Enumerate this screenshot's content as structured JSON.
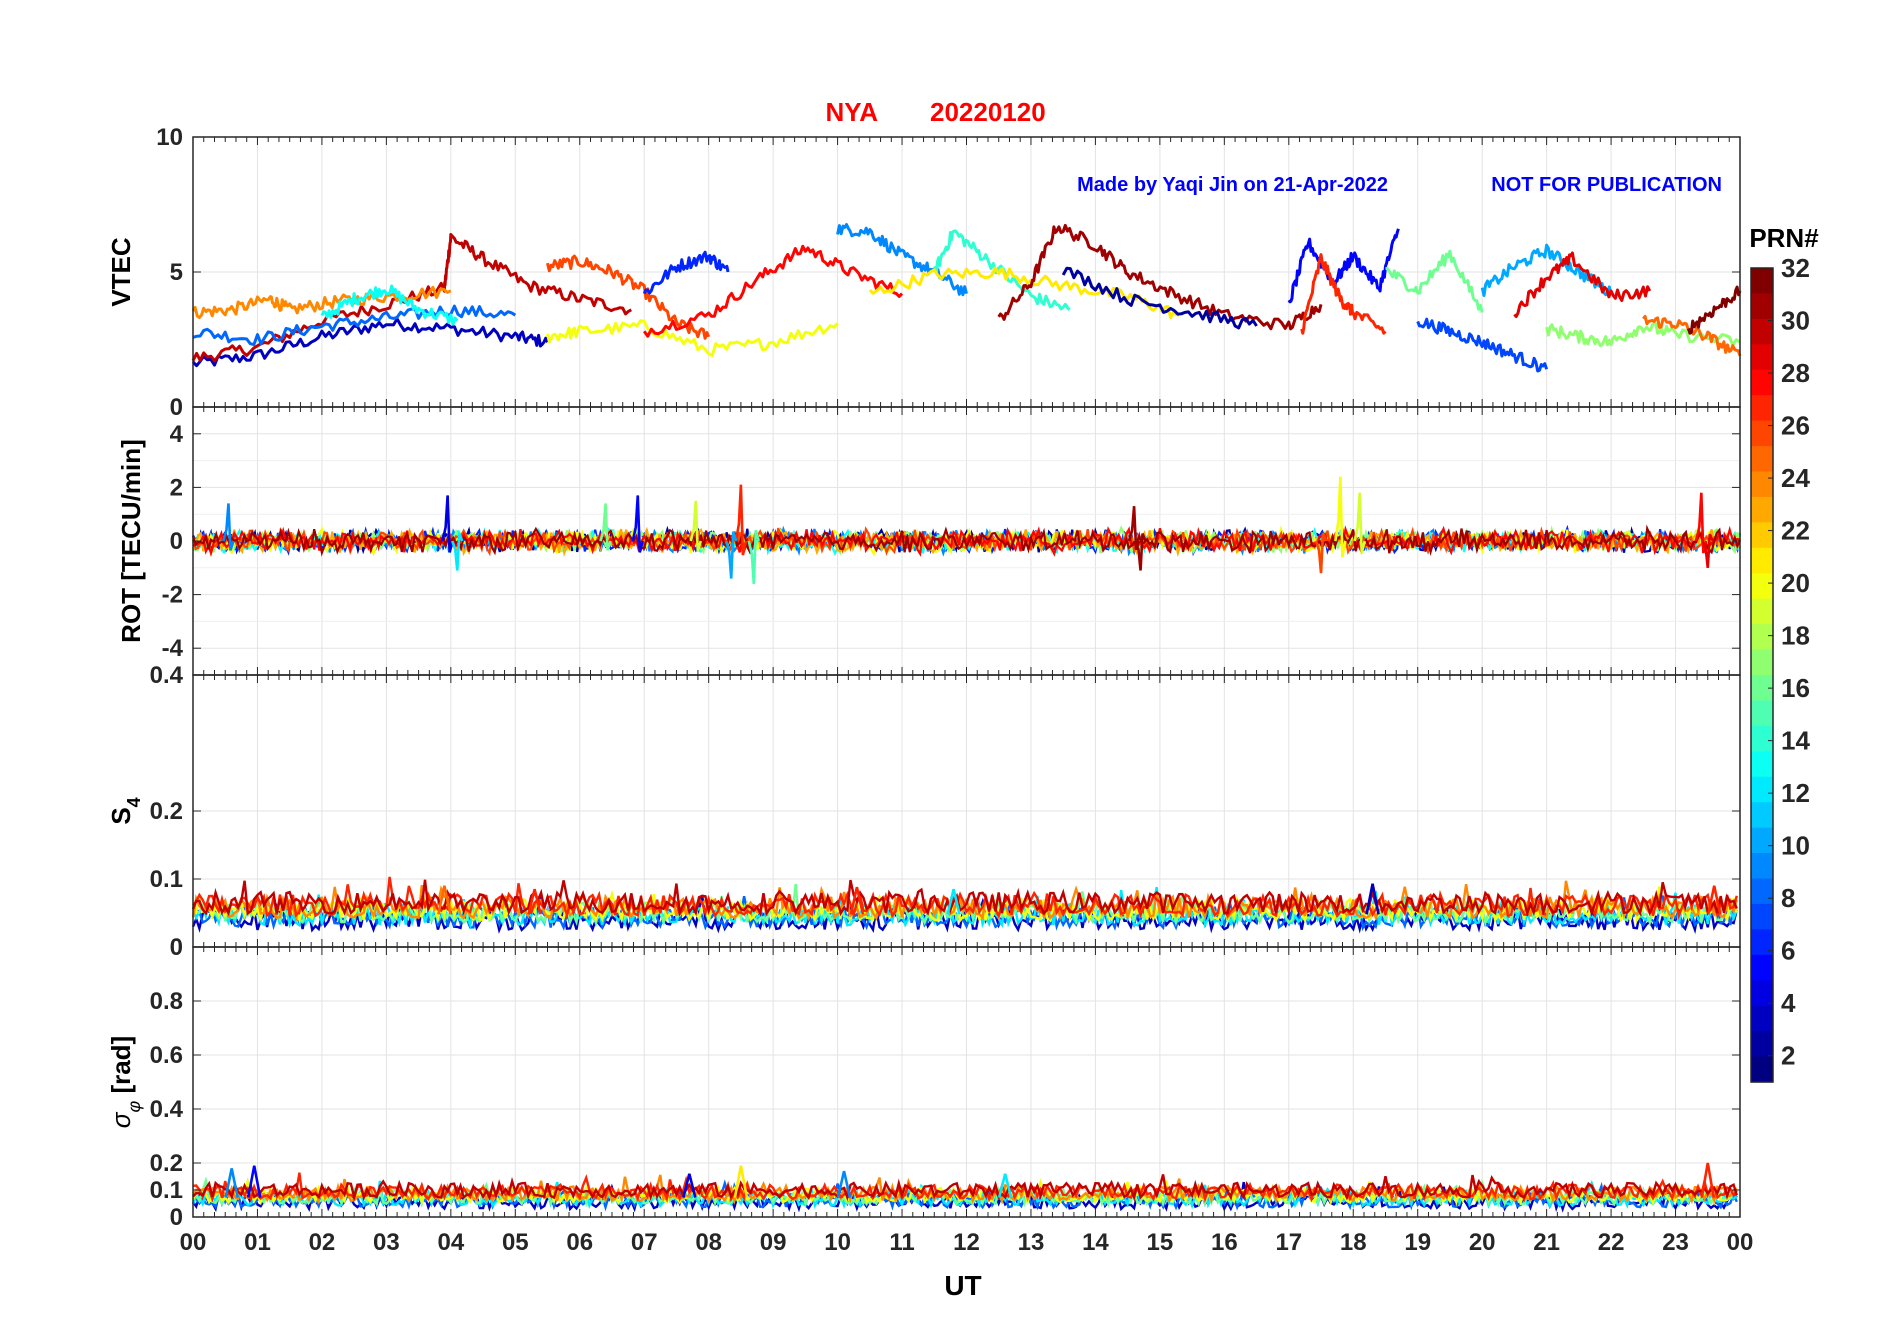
{
  "figure": {
    "title_station": "NYA",
    "title_date": "20220120",
    "credit": "Made by Yaqi Jin on 21-Apr-2022",
    "notice": "NOT FOR PUBLICATION",
    "title_color": "#ff0000",
    "credit_color": "#0000ff"
  },
  "chart_data": [
    {
      "type": "line",
      "panel": "vtec",
      "ylabel": "VTEC",
      "ylim": [
        0,
        10
      ],
      "yticks": [
        0,
        5,
        10
      ],
      "ytick_labels": [
        "0",
        "5",
        "10"
      ],
      "xlim_hours": [
        0,
        24
      ],
      "grid": true,
      "series": [
        {
          "prn": 3,
          "x": [
            0,
            1,
            2,
            3,
            4,
            5,
            5.5
          ],
          "y": [
            1.6,
            1.9,
            2.6,
            3.1,
            2.9,
            2.6,
            2.4
          ]
        },
        {
          "prn": 30,
          "x": [
            0,
            1,
            2,
            3,
            3.9,
            4,
            4.5,
            5.2,
            6,
            6.8
          ],
          "y": [
            1.8,
            2.2,
            3.2,
            3.8,
            4.4,
            6.3,
            5.5,
            4.5,
            4.0,
            3.6
          ]
        },
        {
          "prn": 24,
          "x": [
            0,
            0.6,
            1.2,
            1.5,
            2.2,
            3,
            4
          ],
          "y": [
            3.5,
            3.6,
            4.0,
            3.6,
            3.9,
            4.1,
            4.3
          ]
        },
        {
          "prn": 8,
          "x": [
            0,
            1,
            2,
            3,
            4,
            5
          ],
          "y": [
            2.8,
            2.5,
            3.0,
            3.3,
            3.6,
            3.4
          ]
        },
        {
          "prn": 13,
          "x": [
            2,
            2.5,
            3,
            3.5,
            4.1
          ],
          "y": [
            3.3,
            4.0,
            4.4,
            3.6,
            3.2
          ]
        },
        {
          "prn": 26,
          "x": [
            5.5,
            6,
            6.5,
            7,
            7.5,
            8
          ],
          "y": [
            5.2,
            5.4,
            5.0,
            4.3,
            3.1,
            2.6
          ]
        },
        {
          "prn": 20,
          "x": [
            5.5,
            6,
            7,
            8,
            9,
            10
          ],
          "y": [
            2.6,
            2.8,
            3.0,
            2.1,
            2.4,
            3.1
          ]
        },
        {
          "prn": 6,
          "x": [
            7,
            7.5,
            8,
            8.3
          ],
          "y": [
            4.2,
            5.2,
            5.6,
            5.0
          ]
        },
        {
          "prn": 28,
          "x": [
            7,
            8,
            8.8,
            9.5,
            10.2,
            11
          ],
          "y": [
            2.8,
            3.4,
            4.8,
            5.9,
            5.0,
            4.2
          ]
        },
        {
          "prn": 9,
          "x": [
            10,
            10.5,
            11,
            11.5,
            12
          ],
          "y": [
            6.6,
            6.5,
            5.6,
            5.0,
            4.2
          ]
        },
        {
          "prn": 14,
          "x": [
            11.5,
            11.8,
            12.3,
            13,
            13.6
          ],
          "y": [
            5.0,
            6.5,
            5.5,
            4.1,
            3.6
          ]
        },
        {
          "prn": 21,
          "x": [
            10.5,
            11.5,
            12.5,
            13.5,
            14.5,
            15.3
          ],
          "y": [
            4.2,
            4.9,
            5.0,
            4.5,
            4.1,
            3.4
          ]
        },
        {
          "prn": 31,
          "x": [
            12.5,
            13,
            13.4,
            14,
            14.5,
            15.2,
            16,
            17,
            17.5
          ],
          "y": [
            3.2,
            4.6,
            6.7,
            6.0,
            5.0,
            4.2,
            3.4,
            3.0,
            3.8
          ]
        },
        {
          "prn": 2,
          "x": [
            13.5,
            14.5,
            15.5,
            16.5
          ],
          "y": [
            5.1,
            4.0,
            3.5,
            3.0
          ]
        },
        {
          "prn": 5,
          "x": [
            17,
            17.3,
            17.7,
            18,
            18.4,
            18.7
          ],
          "y": [
            3.8,
            6.1,
            4.6,
            5.6,
            4.4,
            6.6
          ]
        },
        {
          "prn": 27,
          "x": [
            17.2,
            17.5,
            17.8,
            18,
            18.5
          ],
          "y": [
            2.8,
            5.5,
            4.0,
            3.5,
            2.8
          ]
        },
        {
          "prn": 16,
          "x": [
            18.5,
            19,
            19.5,
            20
          ],
          "y": [
            5.1,
            4.3,
            5.7,
            3.5
          ]
        },
        {
          "prn": 7,
          "x": [
            19,
            19.5,
            20,
            20.5,
            21
          ],
          "y": [
            3.2,
            2.8,
            2.4,
            1.9,
            1.4
          ]
        },
        {
          "prn": 10,
          "x": [
            20,
            20.5,
            21,
            21.5,
            22
          ],
          "y": [
            4.3,
            5.2,
            5.8,
            5.0,
            4.2
          ]
        },
        {
          "prn": 29,
          "x": [
            20.5,
            21,
            21.4,
            22,
            22.6
          ],
          "y": [
            3.5,
            4.8,
            5.5,
            4.1,
            4.3
          ]
        },
        {
          "prn": 17,
          "x": [
            21,
            21.5,
            22,
            22.5,
            23,
            24
          ],
          "y": [
            2.9,
            2.6,
            2.4,
            3.0,
            2.7,
            2.4
          ]
        },
        {
          "prn": 25,
          "x": [
            22.5,
            23,
            23.5,
            24
          ],
          "y": [
            3.2,
            3.1,
            2.6,
            1.9
          ]
        },
        {
          "prn": 32,
          "x": [
            23.2,
            23.6,
            24
          ],
          "y": [
            2.9,
            3.6,
            4.3
          ]
        }
      ]
    },
    {
      "type": "line",
      "panel": "rot",
      "ylabel": "ROT [TECU/min]",
      "ylim": [
        -5,
        5
      ],
      "yticks": [
        -4,
        -2,
        0,
        2,
        4
      ],
      "ytick_labels": [
        "-4",
        "-2",
        "0",
        "2",
        "4"
      ],
      "xlim_hours": [
        0,
        24
      ],
      "grid": true,
      "baseline": 0,
      "spikes": [
        {
          "prn": 9,
          "x": 0.55,
          "y": 1.4
        },
        {
          "prn": 4,
          "x": 3.95,
          "y": 1.7
        },
        {
          "prn": 12,
          "x": 4.1,
          "y": -1.1
        },
        {
          "prn": 16,
          "x": 6.4,
          "y": 1.4
        },
        {
          "prn": 5,
          "x": 6.9,
          "y": 1.7
        },
        {
          "prn": 19,
          "x": 7.8,
          "y": 1.5
        },
        {
          "prn": 27,
          "x": 8.5,
          "y": 2.1
        },
        {
          "prn": 10,
          "x": 8.35,
          "y": -1.4
        },
        {
          "prn": 15,
          "x": 8.7,
          "y": -1.6
        },
        {
          "prn": 31,
          "x": 14.6,
          "y": 1.3
        },
        {
          "prn": 31,
          "x": 14.7,
          "y": -1.1
        },
        {
          "prn": 20,
          "x": 17.8,
          "y": 2.4
        },
        {
          "prn": 19,
          "x": 18.1,
          "y": 1.8
        },
        {
          "prn": 26,
          "x": 17.5,
          "y": -1.2
        },
        {
          "prn": 28,
          "x": 23.4,
          "y": 1.8
        },
        {
          "prn": 29,
          "x": 23.5,
          "y": -1.0
        }
      ],
      "noise_amplitude": 0.35
    },
    {
      "type": "line",
      "panel": "s4",
      "ylabel": "S4",
      "ylim": [
        0,
        0.4
      ],
      "yticks": [
        0,
        0.1,
        0.2,
        0.4
      ],
      "ytick_labels": [
        "0",
        "0.1",
        "0.2",
        "0.4"
      ],
      "xlim_hours": [
        0,
        24
      ],
      "grid": true,
      "baseline_range": [
        0.025,
        0.06
      ],
      "peaks": [
        {
          "prn": 25,
          "x": 3.9,
          "y": 0.09
        },
        {
          "prn": 27,
          "x": 5.3,
          "y": 0.085
        },
        {
          "prn": 27,
          "x": 10.3,
          "y": 0.088
        },
        {
          "prn": 12,
          "x": 11.8,
          "y": 0.085
        },
        {
          "prn": 3,
          "x": 18.3,
          "y": 0.093
        },
        {
          "prn": 27,
          "x": 23.6,
          "y": 0.09
        }
      ]
    },
    {
      "type": "line",
      "panel": "sigma_phi",
      "ylabel": "σφ [rad]",
      "ylim": [
        0,
        1
      ],
      "yticks": [
        0,
        0.1,
        0.2,
        0.4,
        0.6,
        0.8
      ],
      "ytick_labels": [
        "0",
        "0.1",
        "0.2",
        "0.4",
        "0.6",
        "0.8"
      ],
      "xlim_hours": [
        0,
        24
      ],
      "grid": true,
      "baseline_range": [
        0.03,
        0.09
      ],
      "peaks": [
        {
          "prn": 9,
          "x": 0.6,
          "y": 0.18
        },
        {
          "prn": 5,
          "x": 0.95,
          "y": 0.19
        },
        {
          "prn": 21,
          "x": 8.5,
          "y": 0.19
        },
        {
          "prn": 4,
          "x": 7.7,
          "y": 0.16
        },
        {
          "prn": 9,
          "x": 10.1,
          "y": 0.17
        },
        {
          "prn": 12,
          "x": 12.6,
          "y": 0.16
        },
        {
          "prn": 27,
          "x": 23.5,
          "y": 0.2
        }
      ]
    }
  ],
  "x_axis": {
    "label": "UT",
    "ticks": [
      "00",
      "01",
      "02",
      "03",
      "04",
      "05",
      "06",
      "07",
      "08",
      "09",
      "10",
      "11",
      "12",
      "13",
      "14",
      "15",
      "16",
      "17",
      "18",
      "19",
      "20",
      "21",
      "22",
      "23",
      "00"
    ]
  },
  "colorbar": {
    "label": "PRN#",
    "min": 1,
    "max": 32,
    "tick_labels": [
      "2",
      "4",
      "6",
      "8",
      "10",
      "12",
      "14",
      "16",
      "18",
      "20",
      "22",
      "24",
      "26",
      "28",
      "30",
      "32"
    ],
    "colormap": "jet"
  }
}
